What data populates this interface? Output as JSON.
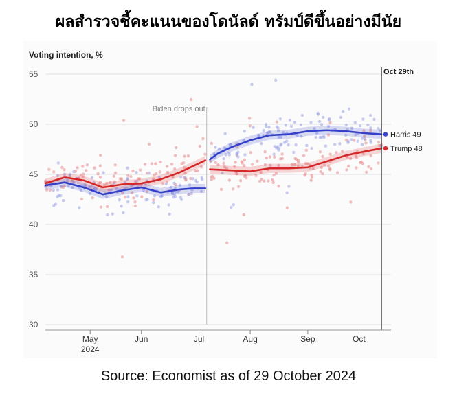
{
  "headline": "ผลสำรวจชี้คะแนนของโดนัลด์ ทรัมป์ดีขึ้นอย่างมีนัย",
  "source": "Source: Economist as of 29 October 2024",
  "chart_data": {
    "type": "line",
    "ylabel": "Voting intention, %",
    "ylim": [
      30,
      55
    ],
    "yticks": [
      30,
      35,
      40,
      45,
      50,
      55
    ],
    "xlim": [
      2024.3,
      2024.84
    ],
    "xticks": [
      {
        "label": "May",
        "sublabel": "2024",
        "x": 2024.37
      },
      {
        "label": "Jun",
        "sublabel": "",
        "x": 2024.45
      },
      {
        "label": "Jul",
        "sublabel": "",
        "x": 2024.54
      },
      {
        "label": "Aug",
        "sublabel": "",
        "x": 2024.62
      },
      {
        "label": "Sep",
        "sublabel": "",
        "x": 2024.71
      },
      {
        "label": "Oct",
        "sublabel": "",
        "x": 2024.79
      }
    ],
    "grid": true,
    "annotations": [
      {
        "text": "Biden drops out",
        "x": 2024.552
      },
      {
        "text": "Oct 29th",
        "x": 2024.825
      }
    ],
    "series": [
      {
        "name": "Trump",
        "end_label": "Trump 48",
        "color": "#d62728",
        "segments": [
          {
            "x": [
              2024.3,
              2024.33,
              2024.36,
              2024.39,
              2024.42,
              2024.45,
              2024.48,
              2024.51,
              2024.53,
              2024.55
            ],
            "y": [
              44.1,
              44.7,
              44.4,
              43.7,
              44.0,
              44.1,
              44.5,
              45.2,
              45.8,
              46.4
            ]
          },
          {
            "x": [
              2024.557,
              2024.59,
              2024.62,
              2024.65,
              2024.68,
              2024.71,
              2024.74,
              2024.77,
              2024.8,
              2024.825
            ],
            "y": [
              45.5,
              45.4,
              45.3,
              45.6,
              45.6,
              45.7,
              46.3,
              46.9,
              47.3,
              47.6
            ]
          }
        ]
      },
      {
        "name": "Harris",
        "end_label": "Harris 49",
        "color": "#3440c9",
        "segments": [
          {
            "x": [
              2024.3,
              2024.33,
              2024.36,
              2024.39,
              2024.42,
              2024.45,
              2024.48,
              2024.51,
              2024.53,
              2024.55
            ],
            "y": [
              43.9,
              44.2,
              43.7,
              43.0,
              43.4,
              43.7,
              43.2,
              43.5,
              43.6,
              43.6
            ]
          },
          {
            "x": [
              2024.557,
              2024.57,
              2024.59,
              2024.62,
              2024.65,
              2024.68,
              2024.71,
              2024.74,
              2024.77,
              2024.8,
              2024.825
            ],
            "y": [
              46.5,
              47.1,
              47.7,
              48.4,
              48.9,
              49.0,
              49.3,
              49.4,
              49.3,
              49.1,
              49.0
            ]
          }
        ]
      }
    ]
  }
}
